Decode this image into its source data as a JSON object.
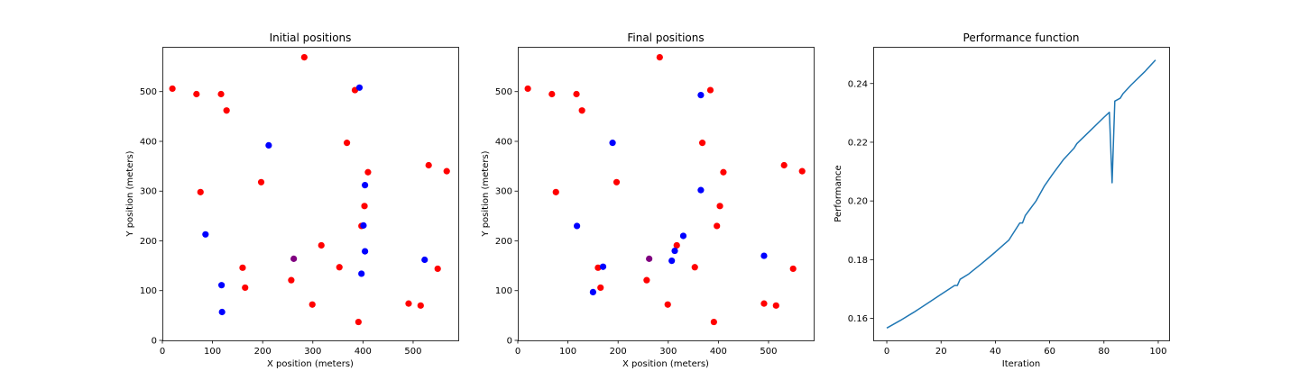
{
  "chart_data": [
    {
      "type": "scatter",
      "title": "Initial positions",
      "xlabel": "X position (meters)",
      "ylabel": "Y position (meters)",
      "xlim": [
        0,
        590
      ],
      "ylim": [
        0,
        590
      ],
      "xticks": [
        0,
        100,
        200,
        300,
        400,
        500
      ],
      "yticks": [
        0,
        100,
        200,
        300,
        400,
        500
      ],
      "grid": false,
      "series": [
        {
          "color": "#ff0000",
          "points": [
            [
              20,
              506
            ],
            [
              68,
              495
            ],
            [
              117,
              495
            ],
            [
              128,
              462
            ],
            [
              283,
              569
            ],
            [
              384,
              503
            ],
            [
              368,
              397
            ],
            [
              410,
              338
            ],
            [
              531,
              352
            ],
            [
              567,
              340
            ],
            [
              76,
              298
            ],
            [
              197,
              318
            ],
            [
              403,
              270
            ],
            [
              397,
              230
            ],
            [
              317,
              191
            ],
            [
              160,
              146
            ],
            [
              353,
              147
            ],
            [
              549,
              144
            ],
            [
              165,
              106
            ],
            [
              257,
              121
            ],
            [
              299,
              72
            ],
            [
              491,
              74
            ],
            [
              515,
              70
            ],
            [
              391,
              37
            ]
          ]
        },
        {
          "color": "#0000ff",
          "points": [
            [
              393,
              508
            ],
            [
              212,
              392
            ],
            [
              404,
              312
            ],
            [
              86,
              213
            ],
            [
              401,
              231
            ],
            [
              404,
              179
            ],
            [
              397,
              134
            ],
            [
              523,
              162
            ],
            [
              118,
              111
            ],
            [
              119,
              57
            ]
          ]
        },
        {
          "color": "#800080",
          "points": [
            [
              262,
              164
            ]
          ]
        }
      ]
    },
    {
      "type": "scatter",
      "title": "Final positions",
      "xlabel": "X position (meters)",
      "ylabel": "Y position (meters)",
      "xlim": [
        0,
        590
      ],
      "ylim": [
        0,
        590
      ],
      "xticks": [
        0,
        100,
        200,
        300,
        400,
        500
      ],
      "yticks": [
        0,
        100,
        200,
        300,
        400,
        500
      ],
      "grid": false,
      "series": [
        {
          "color": "#ff0000",
          "points": [
            [
              20,
              506
            ],
            [
              68,
              495
            ],
            [
              117,
              495
            ],
            [
              128,
              462
            ],
            [
              283,
              569
            ],
            [
              384,
              503
            ],
            [
              368,
              397
            ],
            [
              410,
              338
            ],
            [
              531,
              352
            ],
            [
              567,
              340
            ],
            [
              76,
              298
            ],
            [
              197,
              318
            ],
            [
              403,
              270
            ],
            [
              397,
              230
            ],
            [
              317,
              191
            ],
            [
              160,
              146
            ],
            [
              353,
              147
            ],
            [
              549,
              144
            ],
            [
              165,
              106
            ],
            [
              257,
              121
            ],
            [
              299,
              72
            ],
            [
              491,
              74
            ],
            [
              515,
              70
            ],
            [
              391,
              37
            ]
          ]
        },
        {
          "color": "#0000ff",
          "points": [
            [
              365,
              493
            ],
            [
              189,
              397
            ],
            [
              365,
              302
            ],
            [
              118,
              230
            ],
            [
              330,
              210
            ],
            [
              313,
              180
            ],
            [
              307,
              160
            ],
            [
              170,
              148
            ],
            [
              150,
              97
            ],
            [
              491,
              170
            ]
          ]
        },
        {
          "color": "#800080",
          "points": [
            [
              262,
              164
            ]
          ]
        }
      ]
    },
    {
      "type": "line",
      "title": "Performance function",
      "xlabel": "Iteration",
      "ylabel": "Performance",
      "xlim": [
        -5,
        104
      ],
      "ylim": [
        0.1525,
        0.2525
      ],
      "xticks": [
        0,
        20,
        40,
        60,
        80,
        100
      ],
      "yticks": [
        0.16,
        0.18,
        0.2,
        0.22,
        0.24
      ],
      "ytick_labels": [
        "0.16",
        "0.18",
        "0.20",
        "0.22",
        "0.24"
      ],
      "grid": false,
      "series": [
        {
          "color": "#1f77b4",
          "points": [
            [
              0,
              0.1567
            ],
            [
              5,
              0.1593
            ],
            [
              10,
              0.1621
            ],
            [
              15,
              0.1651
            ],
            [
              20,
              0.1682
            ],
            [
              25,
              0.1712
            ],
            [
              26,
              0.1712
            ],
            [
              27,
              0.1733
            ],
            [
              30,
              0.175
            ],
            [
              35,
              0.1787
            ],
            [
              40,
              0.1826
            ],
            [
              45,
              0.1867
            ],
            [
              49,
              0.1925
            ],
            [
              50,
              0.1925
            ],
            [
              51,
              0.195
            ],
            [
              55,
              0.2
            ],
            [
              58,
              0.205
            ],
            [
              61,
              0.209
            ],
            [
              65,
              0.214
            ],
            [
              69,
              0.218
            ],
            [
              70,
              0.2195
            ],
            [
              75,
              0.224
            ],
            [
              80,
              0.2285
            ],
            [
              82,
              0.2302
            ],
            [
              83,
              0.2062
            ],
            [
              84,
              0.234
            ],
            [
              86,
              0.235
            ],
            [
              87,
              0.2365
            ],
            [
              90,
              0.2395
            ],
            [
              95,
              0.244
            ],
            [
              99,
              0.248
            ]
          ]
        }
      ]
    }
  ]
}
